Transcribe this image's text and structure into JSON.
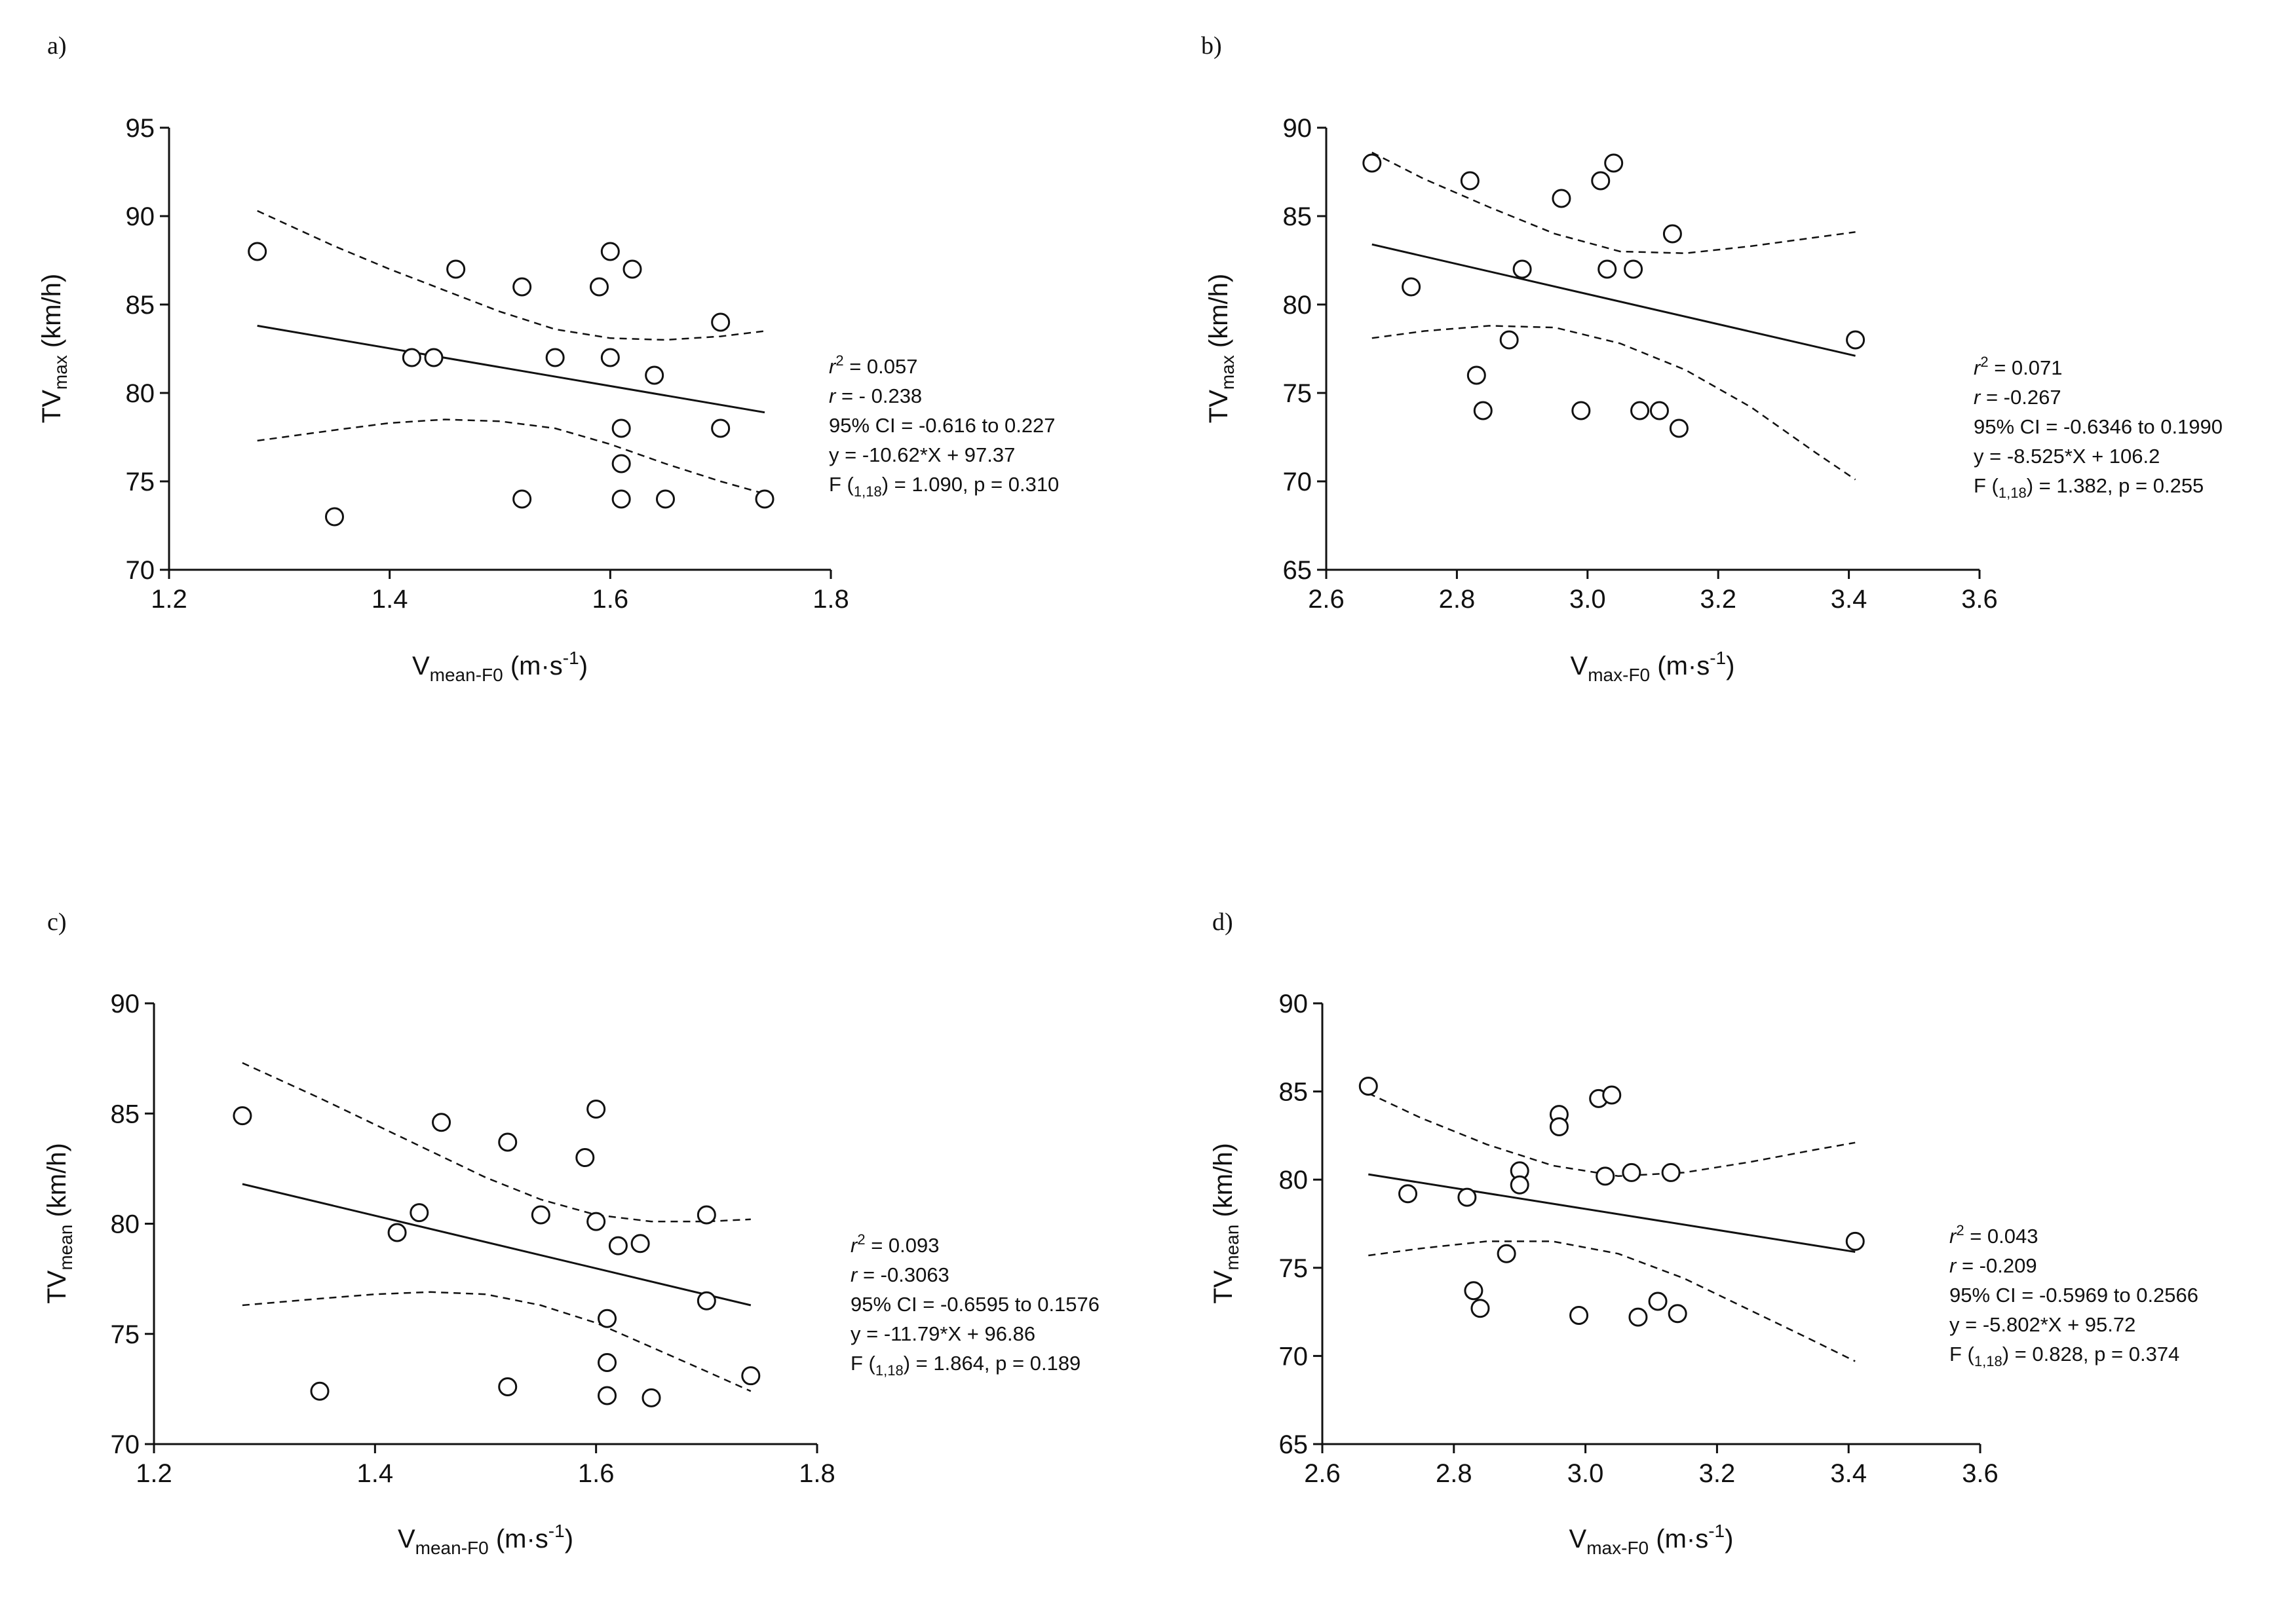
{
  "chart_data": [
    {
      "type": "scatter",
      "panel": "a)",
      "xlabel": {
        "main": "V",
        "sub": "mean-F0",
        "unit": "(m·s",
        "sup": "-1",
        "close": ")"
      },
      "ylabel": {
        "main": "TV",
        "sub": "max",
        "unit": "(km/h)"
      },
      "xlim": [
        1.2,
        1.8
      ],
      "ylim": [
        70,
        95
      ],
      "xticks": [
        1.2,
        1.4,
        1.6,
        1.8
      ],
      "xtick_labels": [
        "1.2",
        "1.4",
        "1.6",
        "1.8"
      ],
      "yticks": [
        70,
        75,
        80,
        85,
        90,
        95
      ],
      "ytick_labels": [
        "70",
        "75",
        "80",
        "85",
        "90",
        "95"
      ],
      "points": [
        [
          1.28,
          88
        ],
        [
          1.35,
          73
        ],
        [
          1.42,
          82
        ],
        [
          1.44,
          82
        ],
        [
          1.46,
          87
        ],
        [
          1.52,
          86
        ],
        [
          1.52,
          74
        ],
        [
          1.55,
          82
        ],
        [
          1.59,
          86
        ],
        [
          1.6,
          88
        ],
        [
          1.6,
          82
        ],
        [
          1.61,
          78
        ],
        [
          1.61,
          76
        ],
        [
          1.61,
          74
        ],
        [
          1.62,
          87
        ],
        [
          1.64,
          81
        ],
        [
          1.65,
          74
        ],
        [
          1.7,
          84
        ],
        [
          1.7,
          78
        ],
        [
          1.74,
          74
        ]
      ],
      "regression": {
        "x": [
          1.28,
          1.74
        ],
        "y": [
          83.8,
          78.9
        ]
      },
      "ci_upper": {
        "x": [
          1.28,
          1.35,
          1.4,
          1.45,
          1.5,
          1.55,
          1.6,
          1.65,
          1.7,
          1.74
        ],
        "y": [
          90.3,
          88.3,
          87.0,
          85.8,
          84.6,
          83.6,
          83.1,
          83.0,
          83.2,
          83.5
        ]
      },
      "ci_lower": {
        "x": [
          1.28,
          1.35,
          1.4,
          1.45,
          1.5,
          1.55,
          1.6,
          1.65,
          1.7,
          1.74
        ],
        "y": [
          77.3,
          77.9,
          78.3,
          78.5,
          78.4,
          78.0,
          77.1,
          76.0,
          75.0,
          74.3
        ]
      },
      "stats": [
        {
          "pre": "r",
          "sup": "2",
          "post": " = 0.057"
        },
        {
          "pre": "r",
          "post": " = - 0.238"
        },
        {
          "post": "95% CI = -0.616 to 0.227"
        },
        {
          "post": "y = -10.62*X + 97.37"
        },
        {
          "pre": "F (",
          "sub": "1,18",
          "post": ") = 1.090, p = 0.310"
        }
      ]
    },
    {
      "type": "scatter",
      "panel": "b)",
      "xlabel": {
        "main": "V",
        "sub": "max-F0",
        "unit": "(m·s",
        "sup": "-1",
        "close": ")"
      },
      "ylabel": {
        "main": "TV",
        "sub": "max",
        "unit": "(km/h)"
      },
      "xlim": [
        2.6,
        3.6
      ],
      "ylim": [
        65,
        90
      ],
      "xticks": [
        2.6,
        2.8,
        3.0,
        3.2,
        3.4,
        3.6
      ],
      "xtick_labels": [
        "2.6",
        "2.8",
        "3.0",
        "3.2",
        "3.4",
        "3.6"
      ],
      "yticks": [
        65,
        70,
        75,
        80,
        85,
        90
      ],
      "ytick_labels": [
        "65",
        "70",
        "75",
        "80",
        "85",
        "90"
      ],
      "points": [
        [
          2.67,
          88
        ],
        [
          2.73,
          81
        ],
        [
          2.82,
          87
        ],
        [
          2.83,
          76
        ],
        [
          2.84,
          74
        ],
        [
          2.88,
          78
        ],
        [
          2.9,
          82
        ],
        [
          2.96,
          86
        ],
        [
          2.99,
          74
        ],
        [
          3.02,
          87
        ],
        [
          3.03,
          82
        ],
        [
          3.04,
          88
        ],
        [
          3.07,
          82
        ],
        [
          3.08,
          74
        ],
        [
          3.11,
          74
        ],
        [
          3.13,
          84
        ],
        [
          3.14,
          73
        ],
        [
          3.41,
          78
        ]
      ],
      "regression": {
        "x": [
          2.67,
          3.41
        ],
        "y": [
          83.4,
          77.1
        ]
      },
      "ci_upper": {
        "x": [
          2.67,
          2.75,
          2.85,
          2.95,
          3.05,
          3.15,
          3.25,
          3.35,
          3.41
        ],
        "y": [
          88.6,
          87.1,
          85.5,
          84.0,
          83.0,
          82.9,
          83.3,
          83.8,
          84.1
        ]
      },
      "ci_lower": {
        "x": [
          2.67,
          2.75,
          2.85,
          2.95,
          3.05,
          3.15,
          3.25,
          3.35,
          3.41
        ],
        "y": [
          78.1,
          78.5,
          78.8,
          78.7,
          77.8,
          76.3,
          74.2,
          71.6,
          70.1
        ]
      },
      "stats": [
        {
          "pre": "r",
          "sup": "2",
          "post": " = 0.071"
        },
        {
          "pre": "r",
          "post": " = -0.267"
        },
        {
          "post": "95% CI = -0.6346 to 0.1990"
        },
        {
          "post": "y = -8.525*X + 106.2"
        },
        {
          "pre": "F (",
          "sub": "1,18",
          "post": ") = 1.382, p = 0.255"
        }
      ]
    },
    {
      "type": "scatter",
      "panel": "c)",
      "xlabel": {
        "main": "V",
        "sub": "mean-F0",
        "unit": "(m·s",
        "sup": "-1",
        "close": ")"
      },
      "ylabel": {
        "main": "TV",
        "sub": "mean",
        "unit": "(km/h)"
      },
      "xlim": [
        1.2,
        1.8
      ],
      "ylim": [
        70,
        90
      ],
      "xticks": [
        1.2,
        1.4,
        1.6,
        1.8
      ],
      "xtick_labels": [
        "1.2",
        "1.4",
        "1.6",
        "1.8"
      ],
      "yticks": [
        70,
        75,
        80,
        85,
        90
      ],
      "ytick_labels": [
        "70",
        "75",
        "80",
        "85",
        "90"
      ],
      "points": [
        [
          1.28,
          84.9
        ],
        [
          1.35,
          72.4
        ],
        [
          1.42,
          79.6
        ],
        [
          1.44,
          80.5
        ],
        [
          1.46,
          84.6
        ],
        [
          1.52,
          83.7
        ],
        [
          1.52,
          72.6
        ],
        [
          1.55,
          80.4
        ],
        [
          1.59,
          83.0
        ],
        [
          1.6,
          85.2
        ],
        [
          1.6,
          80.1
        ],
        [
          1.61,
          75.7
        ],
        [
          1.61,
          73.7
        ],
        [
          1.61,
          72.2
        ],
        [
          1.62,
          79.0
        ],
        [
          1.64,
          79.1
        ],
        [
          1.65,
          72.1
        ],
        [
          1.7,
          80.4
        ],
        [
          1.7,
          76.5
        ],
        [
          1.74,
          73.1
        ]
      ],
      "regression": {
        "x": [
          1.28,
          1.74
        ],
        "y": [
          81.8,
          76.3
        ]
      },
      "ci_upper": {
        "x": [
          1.28,
          1.35,
          1.4,
          1.45,
          1.5,
          1.55,
          1.6,
          1.65,
          1.7,
          1.74
        ],
        "y": [
          87.3,
          85.7,
          84.5,
          83.3,
          82.1,
          81.1,
          80.4,
          80.1,
          80.1,
          80.2
        ]
      },
      "ci_lower": {
        "x": [
          1.28,
          1.35,
          1.4,
          1.45,
          1.5,
          1.55,
          1.6,
          1.65,
          1.7,
          1.74
        ],
        "y": [
          76.3,
          76.6,
          76.8,
          76.9,
          76.8,
          76.3,
          75.5,
          74.4,
          73.3,
          72.4
        ]
      },
      "stats": [
        {
          "pre": "r",
          "sup": "2",
          "post": " = 0.093"
        },
        {
          "pre": "r",
          "post": " = -0.3063"
        },
        {
          "post": "95% CI = -0.6595 to 0.1576"
        },
        {
          "post": "y = -11.79*X + 96.86"
        },
        {
          "pre": "F (",
          "sub": "1,18",
          "post": ") = 1.864, p = 0.189"
        }
      ]
    },
    {
      "type": "scatter",
      "panel": "d)",
      "xlabel": {
        "main": "V",
        "sub": "max-F0",
        "unit": "(m·s",
        "sup": "-1",
        "close": ")"
      },
      "ylabel": {
        "main": "TV",
        "sub": "mean",
        "unit": "(km/h)"
      },
      "xlim": [
        2.6,
        3.6
      ],
      "ylim": [
        65,
        90
      ],
      "xticks": [
        2.6,
        2.8,
        3.0,
        3.2,
        3.4,
        3.6
      ],
      "xtick_labels": [
        "2.6",
        "2.8",
        "3.0",
        "3.2",
        "3.4",
        "3.6"
      ],
      "yticks": [
        65,
        70,
        75,
        80,
        85,
        90
      ],
      "ytick_labels": [
        "65",
        "70",
        "75",
        "80",
        "85",
        "90"
      ],
      "points": [
        [
          2.67,
          85.3
        ],
        [
          2.73,
          79.2
        ],
        [
          2.82,
          79.0
        ],
        [
          2.83,
          73.7
        ],
        [
          2.84,
          72.7
        ],
        [
          2.88,
          75.8
        ],
        [
          2.9,
          80.5
        ],
        [
          2.9,
          79.7
        ],
        [
          2.96,
          83.7
        ],
        [
          2.96,
          83.0
        ],
        [
          2.99,
          72.3
        ],
        [
          3.02,
          84.6
        ],
        [
          3.03,
          80.2
        ],
        [
          3.04,
          84.8
        ],
        [
          3.07,
          80.4
        ],
        [
          3.08,
          72.2
        ],
        [
          3.11,
          73.1
        ],
        [
          3.13,
          80.4
        ],
        [
          3.14,
          72.4
        ],
        [
          3.41,
          76.5
        ]
      ],
      "regression": {
        "x": [
          2.67,
          3.41
        ],
        "y": [
          80.3,
          75.9
        ]
      },
      "ci_upper": {
        "x": [
          2.67,
          2.75,
          2.85,
          2.95,
          3.05,
          3.15,
          3.25,
          3.35,
          3.41
        ],
        "y": [
          84.9,
          83.5,
          82.0,
          80.8,
          80.2,
          80.4,
          81.0,
          81.7,
          82.1
        ]
      },
      "ci_lower": {
        "x": [
          2.67,
          2.75,
          2.85,
          2.95,
          3.05,
          3.15,
          3.25,
          3.35,
          3.41
        ],
        "y": [
          75.7,
          76.1,
          76.5,
          76.5,
          75.8,
          74.4,
          72.6,
          70.8,
          69.7
        ]
      },
      "stats": [
        {
          "pre": "r",
          "sup": "2",
          "post": " = 0.043"
        },
        {
          "pre": "r",
          "post": " = -0.209"
        },
        {
          "post": "95% CI = -0.5969 to 0.2566"
        },
        {
          "post": "y = -5.802*X + 95.72"
        },
        {
          "pre": "F (",
          "sub": "1,18",
          "post": ") = 0.828, p = 0.374"
        }
      ]
    }
  ]
}
